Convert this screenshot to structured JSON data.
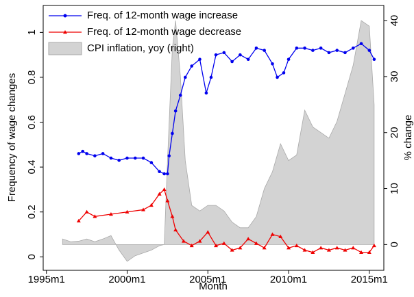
{
  "chart_data": {
    "type": "line",
    "xlabel": "Month",
    "ylabel": "Frequency of wage changes",
    "y2label": "% change",
    "xlim": [
      1994.8,
      2015.9
    ],
    "ylim": [
      -0.06,
      1.12
    ],
    "y2lim": [
      -4.6,
      42.7
    ],
    "xticks": [
      {
        "value": 1995,
        "label": "1995m1"
      },
      {
        "value": 2000,
        "label": "2000m1"
      },
      {
        "value": 2005,
        "label": "2005m1"
      },
      {
        "value": 2010,
        "label": "2010m1"
      },
      {
        "value": 2015,
        "label": "2015m1"
      }
    ],
    "yticks": [
      0,
      0.2,
      0.4,
      0.6,
      0.8,
      1
    ],
    "y2ticks": [
      0,
      10,
      20,
      30,
      40
    ],
    "legend": "top-left",
    "series": [
      {
        "name": "Freq. of 12-month wage increase",
        "color": "#0000ee",
        "marker": "circle",
        "axis": "y",
        "x": [
          1997,
          1997.25,
          1997.5,
          1998,
          1998.5,
          1999,
          1999.5,
          2000,
          2000.5,
          2001,
          2001.5,
          2002,
          2002.3,
          2002.5,
          2002.6,
          2002.8,
          2003,
          2003.3,
          2003.6,
          2004,
          2004.5,
          2004.9,
          2005.2,
          2005.5,
          2006,
          2006.5,
          2007,
          2007.5,
          2008,
          2008.5,
          2009,
          2009.3,
          2009.7,
          2010,
          2010.5,
          2011,
          2011.5,
          2012,
          2012.5,
          2013,
          2013.5,
          2014,
          2014.5,
          2015,
          2015.3
        ],
        "values": [
          0.46,
          0.47,
          0.46,
          0.45,
          0.46,
          0.44,
          0.43,
          0.44,
          0.44,
          0.44,
          0.42,
          0.38,
          0.37,
          0.37,
          0.45,
          0.55,
          0.65,
          0.72,
          0.8,
          0.85,
          0.88,
          0.73,
          0.8,
          0.9,
          0.91,
          0.87,
          0.9,
          0.88,
          0.93,
          0.92,
          0.86,
          0.8,
          0.82,
          0.88,
          0.93,
          0.93,
          0.92,
          0.93,
          0.91,
          0.92,
          0.91,
          0.93,
          0.95,
          0.92,
          0.88
        ]
      },
      {
        "name": "Freq. of 12-month wage decrease",
        "color": "#ee0000",
        "marker": "triangle",
        "axis": "y",
        "x": [
          1997,
          1997.5,
          1998,
          1999,
          2000,
          2001,
          2001.5,
          2002,
          2002.3,
          2002.5,
          2002.8,
          2003,
          2003.5,
          2004,
          2004.5,
          2005,
          2005.5,
          2006,
          2006.5,
          2007,
          2007.5,
          2008,
          2008.5,
          2009,
          2009.5,
          2010,
          2010.5,
          2011,
          2011.5,
          2012,
          2012.5,
          2013,
          2013.5,
          2014,
          2014.5,
          2015,
          2015.3
        ],
        "values": [
          0.16,
          0.2,
          0.18,
          0.19,
          0.2,
          0.21,
          0.23,
          0.28,
          0.3,
          0.25,
          0.18,
          0.12,
          0.07,
          0.05,
          0.07,
          0.11,
          0.05,
          0.06,
          0.03,
          0.04,
          0.08,
          0.06,
          0.04,
          0.1,
          0.09,
          0.04,
          0.05,
          0.03,
          0.02,
          0.04,
          0.03,
          0.04,
          0.03,
          0.04,
          0.02,
          0.02,
          0.05
        ]
      },
      {
        "name": "CPI inflation, yoy (right)",
        "color": "#d3d3d3",
        "marker": "area",
        "axis": "y2",
        "x": [
          1996,
          1996.5,
          1997,
          1997.5,
          1998,
          1998.5,
          1999,
          1999.5,
          2000,
          2000.5,
          2001,
          2001.5,
          2002,
          2002.3,
          2002.5,
          2002.8,
          2003,
          2003.3,
          2003.6,
          2004,
          2004.5,
          2005,
          2005.5,
          2006,
          2006.5,
          2007,
          2007.5,
          2008,
          2008.5,
          2009,
          2009.5,
          2010,
          2010.5,
          2011,
          2011.5,
          2012,
          2012.5,
          2013,
          2013.5,
          2014,
          2014.5,
          2015,
          2015.3
        ],
        "values": [
          1,
          0.5,
          0.6,
          1,
          0.5,
          1,
          1.6,
          -1,
          -3,
          -2,
          -1.5,
          -1,
          -0.2,
          0,
          15,
          35,
          40,
          30,
          15,
          7,
          6,
          7,
          7,
          6,
          4,
          3,
          3,
          5,
          10,
          13,
          18,
          15,
          16,
          24,
          21,
          20,
          19,
          22,
          27,
          32,
          40,
          39,
          25
        ]
      }
    ]
  }
}
